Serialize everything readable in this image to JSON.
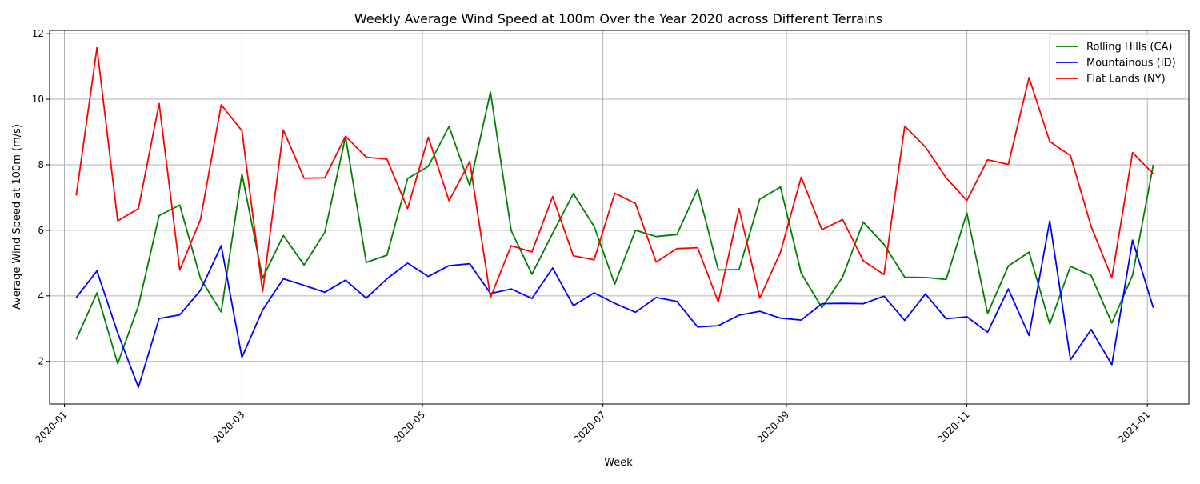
{
  "chart_data": {
    "type": "line",
    "title": "Weekly Average Wind Speed at 100m Over the Year 2020 across Different Terrains",
    "xlabel": "Week",
    "ylabel": "Average Wind Speed at 100m (m/s)",
    "grid": true,
    "legend_position": "top-right",
    "xlim": [
      "2019-12-27",
      "2021-01-15"
    ],
    "ylim": [
      0.7,
      12.1
    ],
    "x_ticks": [
      {
        "date": "2020-01-01",
        "label": "2020-01"
      },
      {
        "date": "2020-03-01",
        "label": "2020-03"
      },
      {
        "date": "2020-05-01",
        "label": "2020-05"
      },
      {
        "date": "2020-07-01",
        "label": "2020-07"
      },
      {
        "date": "2020-09-01",
        "label": "2020-09"
      },
      {
        "date": "2020-11-01",
        "label": "2020-11"
      },
      {
        "date": "2021-01-01",
        "label": "2021-01"
      }
    ],
    "y_ticks": [
      2,
      4,
      6,
      8,
      10,
      12
    ],
    "x": [
      "2020-01-05",
      "2020-01-12",
      "2020-01-19",
      "2020-01-26",
      "2020-02-02",
      "2020-02-09",
      "2020-02-16",
      "2020-02-23",
      "2020-03-01",
      "2020-03-08",
      "2020-03-15",
      "2020-03-22",
      "2020-03-29",
      "2020-04-05",
      "2020-04-12",
      "2020-04-19",
      "2020-04-26",
      "2020-05-03",
      "2020-05-10",
      "2020-05-17",
      "2020-05-24",
      "2020-05-31",
      "2020-06-07",
      "2020-06-14",
      "2020-06-21",
      "2020-06-28",
      "2020-07-05",
      "2020-07-12",
      "2020-07-19",
      "2020-07-26",
      "2020-08-02",
      "2020-08-09",
      "2020-08-16",
      "2020-08-23",
      "2020-08-30",
      "2020-09-06",
      "2020-09-13",
      "2020-09-20",
      "2020-09-27",
      "2020-10-04",
      "2020-10-11",
      "2020-10-18",
      "2020-10-25",
      "2020-11-01",
      "2020-11-08",
      "2020-11-15",
      "2020-11-22",
      "2020-11-29",
      "2020-12-06",
      "2020-12-13",
      "2020-12-20",
      "2020-12-27",
      "2021-01-03"
    ],
    "series": [
      {
        "name": "Rolling Hills (CA)",
        "color": "#008000",
        "values": [
          2.67,
          4.09,
          1.93,
          3.69,
          6.45,
          6.77,
          4.53,
          3.51,
          7.72,
          4.54,
          5.84,
          4.94,
          5.94,
          8.86,
          5.02,
          5.24,
          7.58,
          7.95,
          9.17,
          7.36,
          10.22,
          5.99,
          4.66,
          5.91,
          7.12,
          6.12,
          4.36,
          6.0,
          5.81,
          5.87,
          7.26,
          4.79,
          4.8,
          6.95,
          7.32,
          4.69,
          3.64,
          4.58,
          6.25,
          5.57,
          4.57,
          4.56,
          4.5,
          6.53,
          3.46,
          4.91,
          5.33,
          3.14,
          4.9,
          4.62,
          3.17,
          4.63,
          8.0
        ]
      },
      {
        "name": "Mountainous (ID)",
        "color": "#0000ff",
        "values": [
          3.95,
          4.76,
          2.87,
          1.21,
          3.31,
          3.42,
          4.17,
          5.53,
          2.12,
          3.57,
          4.52,
          4.32,
          4.11,
          4.48,
          3.93,
          4.52,
          5.0,
          4.59,
          4.92,
          4.98,
          4.07,
          4.21,
          3.92,
          4.85,
          3.7,
          4.09,
          3.77,
          3.5,
          3.95,
          3.83,
          3.05,
          3.09,
          3.41,
          3.53,
          3.32,
          3.26,
          3.76,
          3.77,
          3.76,
          3.99,
          3.25,
          4.06,
          3.3,
          3.36,
          2.89,
          4.21,
          2.79,
          6.29,
          2.05,
          2.97,
          1.9,
          5.7,
          3.64
        ]
      },
      {
        "name": "Flat Lands (NY)",
        "color": "#ff0000",
        "values": [
          7.06,
          11.57,
          6.29,
          6.66,
          9.87,
          4.79,
          6.33,
          9.83,
          9.04,
          4.13,
          9.06,
          7.59,
          7.6,
          8.87,
          8.23,
          8.17,
          6.66,
          8.84,
          6.9,
          8.1,
          3.95,
          5.53,
          5.34,
          7.03,
          5.22,
          5.1,
          7.13,
          6.82,
          5.03,
          5.44,
          5.47,
          3.81,
          6.66,
          3.93,
          5.33,
          7.62,
          6.02,
          6.33,
          5.07,
          4.65,
          9.18,
          8.54,
          7.6,
          6.91,
          8.15,
          8.01,
          10.66,
          8.71,
          8.28,
          6.12,
          4.55,
          8.37,
          7.72
        ]
      }
    ]
  }
}
